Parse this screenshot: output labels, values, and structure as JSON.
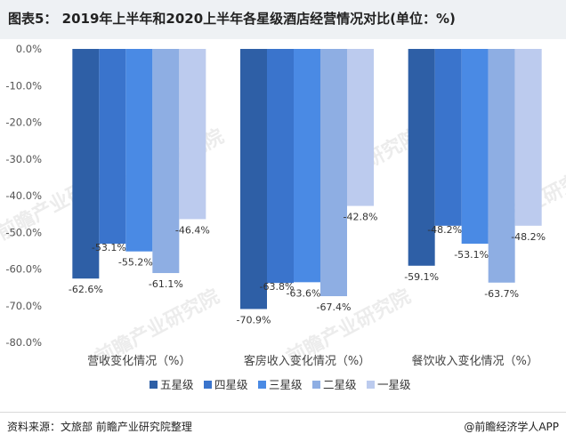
{
  "header": {
    "title": "图表5： 2019年上半年和2020上半年各星级酒店经营情况对比(单位：%)"
  },
  "footer": {
    "source": "资料来源：文旅部 前瞻产业研究院整理",
    "brand": "@前瞻经济学人APP"
  },
  "watermark": "前瞻产业研究院",
  "chart_data": {
    "type": "bar",
    "title": "图表5： 2019年上半年和2020上半年各星级酒店经营情况对比(单位：%)",
    "categories": [
      "营收变化情况（%）",
      "客房收入变化情况（%）",
      "餐饮收入变化情况（%）"
    ],
    "series": [
      {
        "name": "五星级",
        "color": "#2e5fa6",
        "values": [
          -62.6,
          -70.9,
          -59.1
        ],
        "labels": [
          "-62.6%",
          "-70.9%",
          "-59.1%"
        ]
      },
      {
        "name": "四星级",
        "color": "#3a74cc",
        "values": [
          -53.1,
          -63.8,
          -48.2
        ],
        "labels": [
          "-53.1%",
          "-63.8%",
          "-48.2%"
        ]
      },
      {
        "name": "三星级",
        "color": "#4a8ae4",
        "values": [
          -55.2,
          -63.6,
          -53.1
        ],
        "labels": [
          "-55.2%",
          "-63.6%",
          "-53.1%"
        ]
      },
      {
        "name": "二星级",
        "color": "#8eaee3",
        "values": [
          -61.1,
          -67.4,
          -63.7
        ],
        "labels": [
          "-61.1%",
          "-67.4%",
          "-63.7%"
        ]
      },
      {
        "name": "一星级",
        "color": "#bccbee",
        "values": [
          -46.4,
          -42.8,
          -48.2
        ],
        "labels": [
          "-46.4%",
          "-42.8%",
          "-48.2%"
        ]
      }
    ],
    "ylim": [
      -80,
      0
    ],
    "yticks": [
      0,
      -10,
      -20,
      -30,
      -40,
      -50,
      -60,
      -70,
      -80
    ],
    "ytick_labels": [
      "0.0%",
      "-10.0%",
      "-20.0%",
      "-30.0%",
      "-40.0%",
      "-50.0%",
      "-60.0%",
      "-70.0%",
      "-80.0%"
    ],
    "xlabel": "",
    "ylabel": "",
    "grid": false,
    "legend": "bottom"
  }
}
